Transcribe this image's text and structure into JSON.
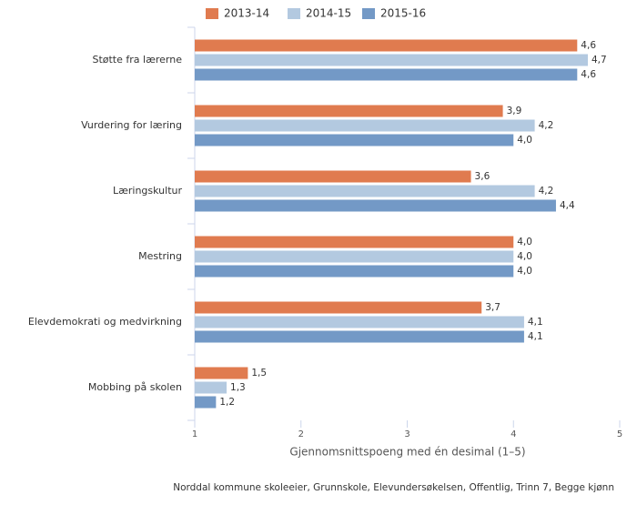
{
  "chart_data": {
    "type": "bar",
    "orientation": "horizontal",
    "categories": [
      "Støtte fra lærerne",
      "Vurdering for læring",
      "Læringskultur",
      "Mestring",
      "Elevdemokrati og medvirkning",
      "Mobbing på skolen"
    ],
    "series": [
      {
        "name": "2013-14",
        "color": "#e07b4f",
        "values": [
          4.6,
          3.9,
          3.6,
          4.0,
          3.7,
          1.5
        ],
        "value_labels": [
          "4,6",
          "3,9",
          "3,6",
          "4,0",
          "3,7",
          "1,5"
        ]
      },
      {
        "name": "2014-15",
        "color": "#b3c9e0",
        "values": [
          4.7,
          4.2,
          4.2,
          4.0,
          4.1,
          1.3
        ],
        "value_labels": [
          "4,7",
          "4,2",
          "4,2",
          "4,0",
          "4,1",
          "1,3"
        ]
      },
      {
        "name": "2015-16",
        "color": "#7399c6",
        "values": [
          4.6,
          4.0,
          4.4,
          4.0,
          4.1,
          1.2
        ],
        "value_labels": [
          "4,6",
          "4,0",
          "4,4",
          "4,0",
          "4,1",
          "1,2"
        ]
      }
    ],
    "xlim": [
      1,
      5
    ],
    "xticks": [
      1,
      2,
      3,
      4,
      5
    ],
    "x_label": "Gjennomsnittspoeng med én desimal (1–5)",
    "source": "Norddal kommune skoleeier, Grunnskole, Elevundersøkelsen, Offentlig, Trinn 7, Begge kjønn",
    "legend": "top"
  }
}
